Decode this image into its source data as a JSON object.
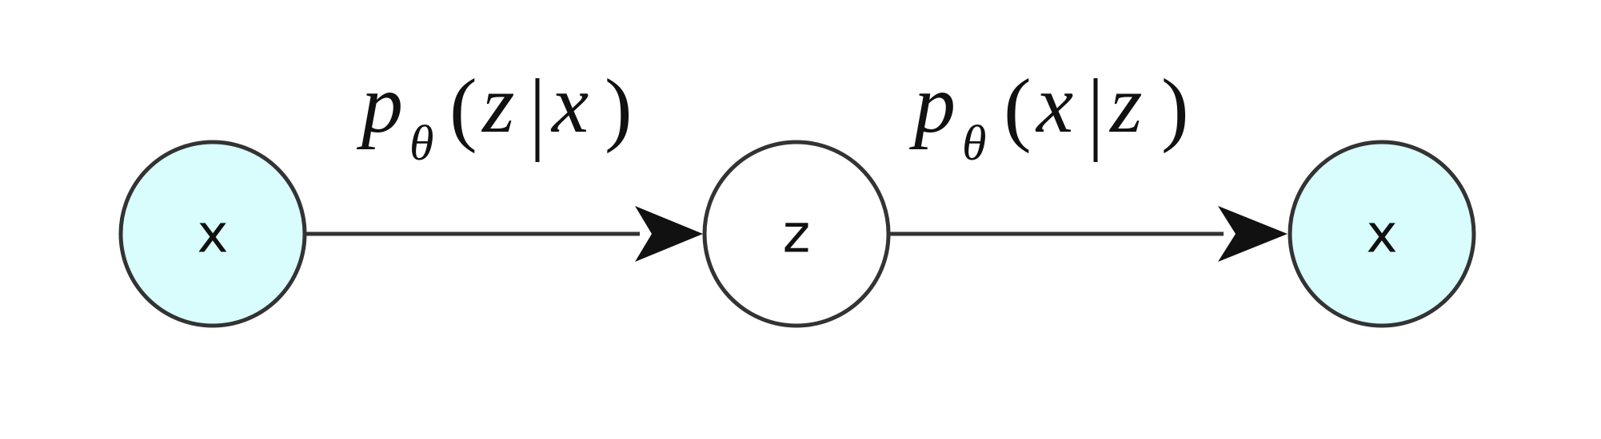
{
  "nodes": [
    {
      "id": "x-input",
      "label": "x",
      "fill": "#d9fcfd",
      "observed": true
    },
    {
      "id": "z-latent",
      "label": "z",
      "fill": "#ffffff",
      "observed": false
    },
    {
      "id": "x-output",
      "label": "x",
      "fill": "#d9fcfd",
      "observed": true
    }
  ],
  "edges": [
    {
      "from": "x-input",
      "to": "z-latent",
      "label": {
        "base": "p",
        "subscript": "θ",
        "open": "(",
        "target": "z",
        "condition": "x",
        "close": ")"
      }
    },
    {
      "from": "z-latent",
      "to": "x-output",
      "label": {
        "base": "p",
        "subscript": "θ",
        "open": "(",
        "target": "x",
        "condition": "z",
        "close": ")"
      }
    }
  ],
  "colors": {
    "stroke": "#333333",
    "observed_fill": "#d9fcfd",
    "latent_fill": "#ffffff",
    "arrow": "#111111"
  }
}
